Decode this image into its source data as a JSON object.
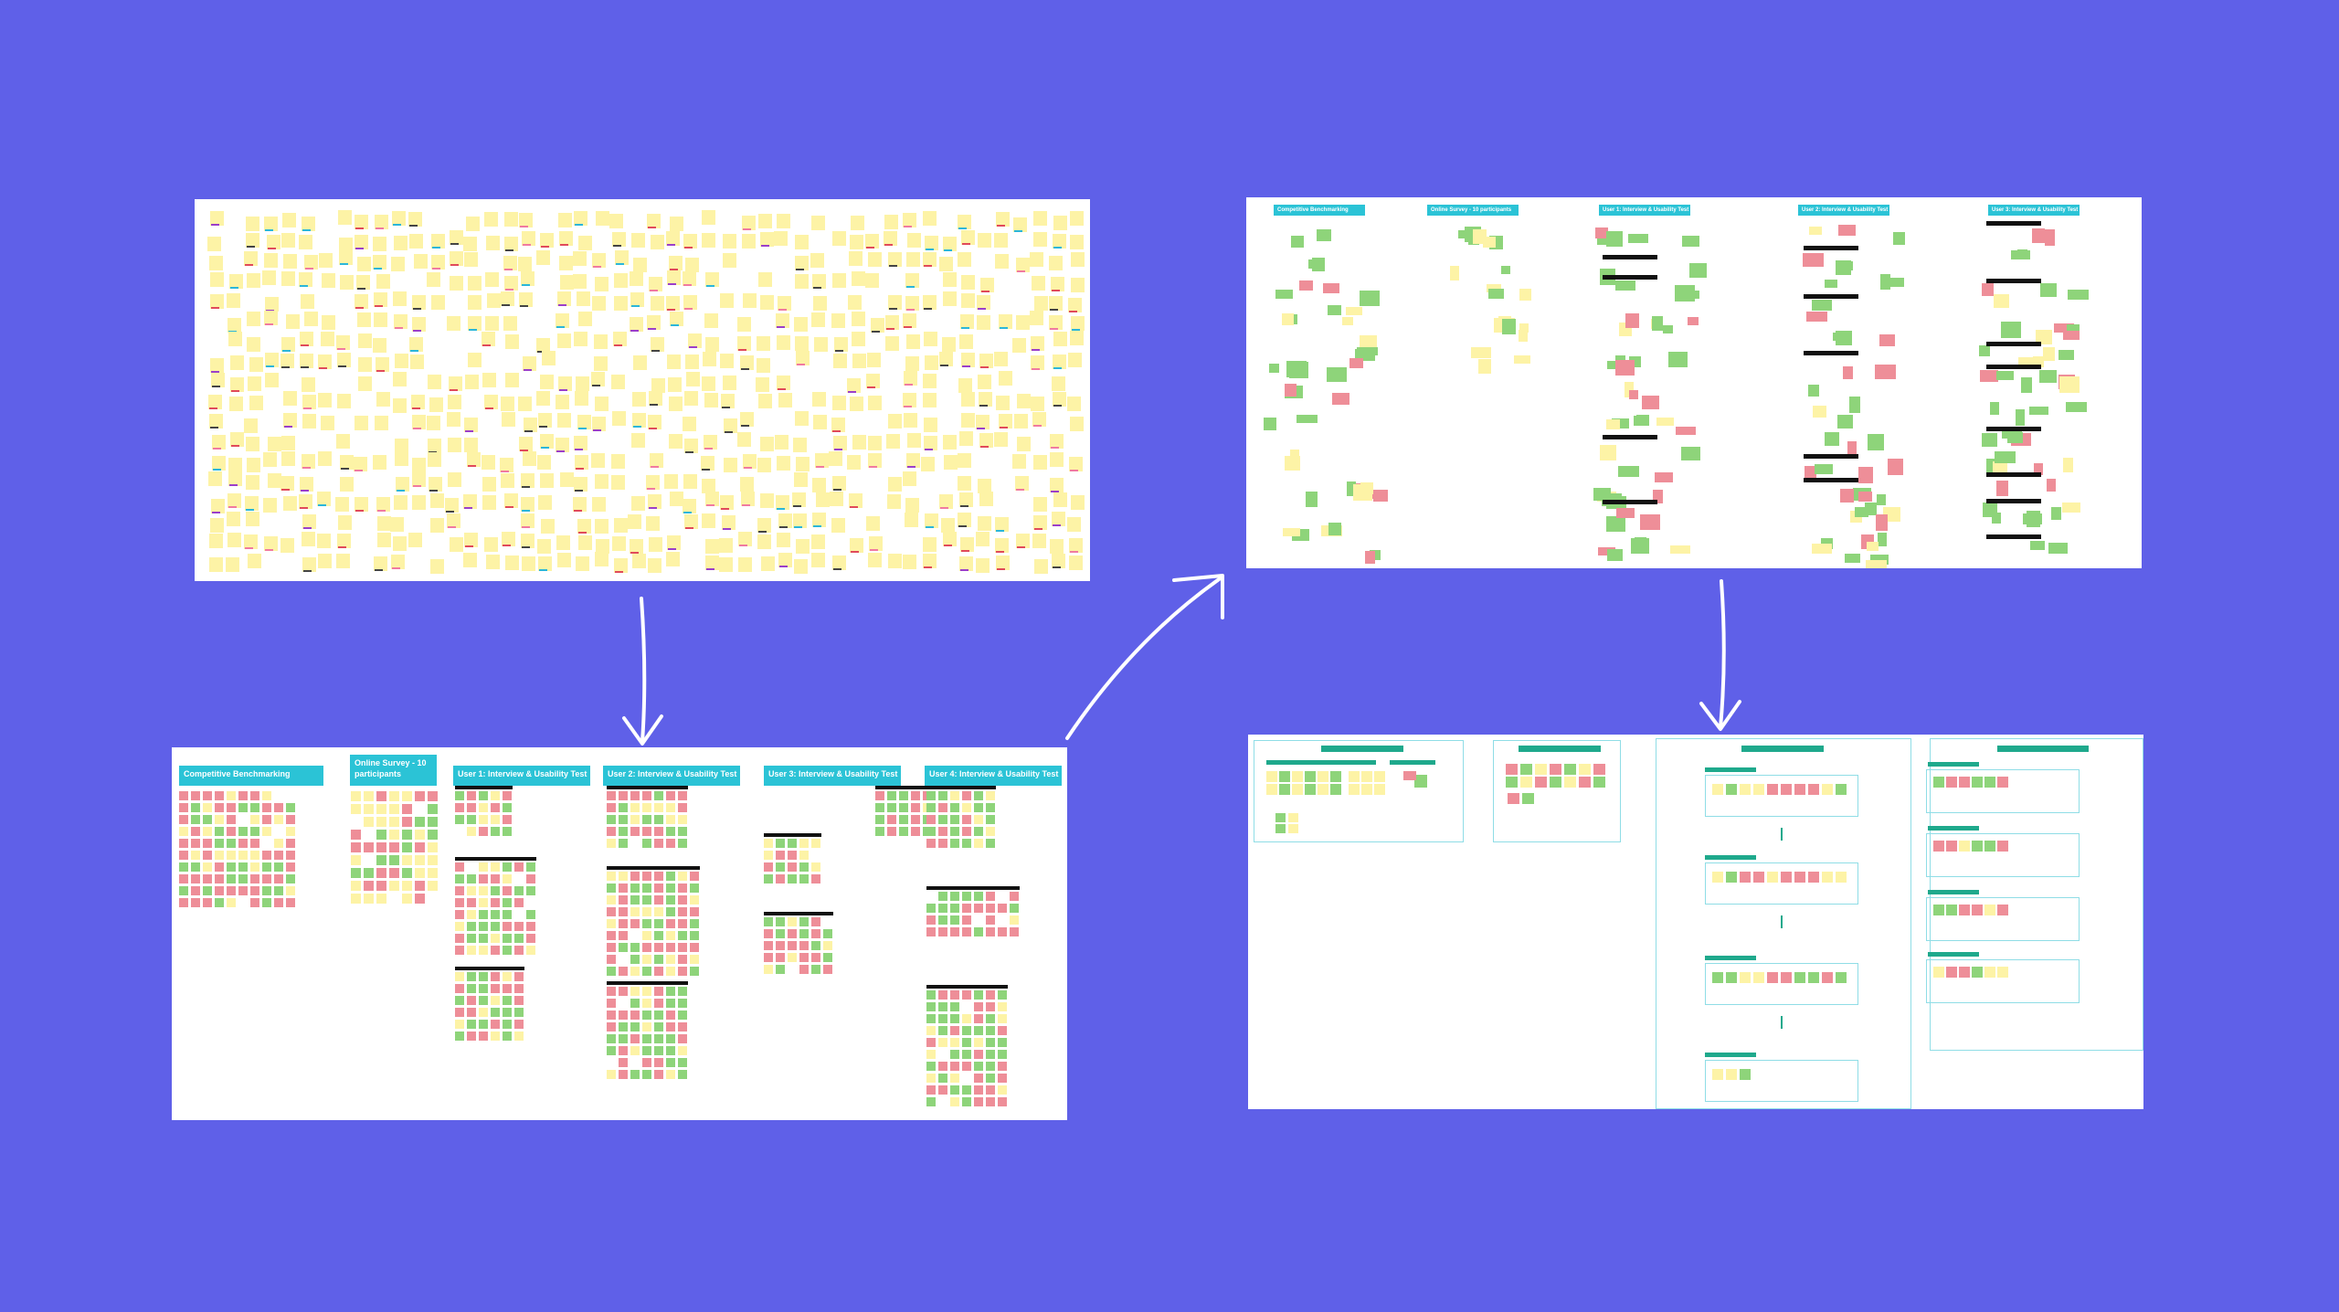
{
  "colors": {
    "background": "#5f60e8",
    "board": "#ffffff",
    "sticky_yellow": "#fdf3a6",
    "sticky_green": "#8ed47a",
    "sticky_red": "#ee8e98",
    "header_cyan": "#2bc3d6",
    "tag_teal": "#1fa98c",
    "arrow": "#ffffff"
  },
  "board2": {
    "headers": [
      "Competitive Benchmarking",
      "Online Survey - 10 participants",
      "User 1: Interview & Usability Test",
      "User 2: Interview & Usability Test",
      "User 3: Interview & Usability Test",
      "User 4: Interview & Usability Test"
    ]
  },
  "board3": {
    "headers": [
      "Competitive Benchmarking",
      "Online Survey - 10 participants",
      "User 1: Interview & Usability Test",
      "User 2: Interview & Usability Test",
      "User 3: Interview & Usability Test"
    ]
  },
  "arrows": [
    "arrow-board1-to-board2",
    "arrow-board2-to-board3",
    "arrow-board3-to-board4"
  ]
}
